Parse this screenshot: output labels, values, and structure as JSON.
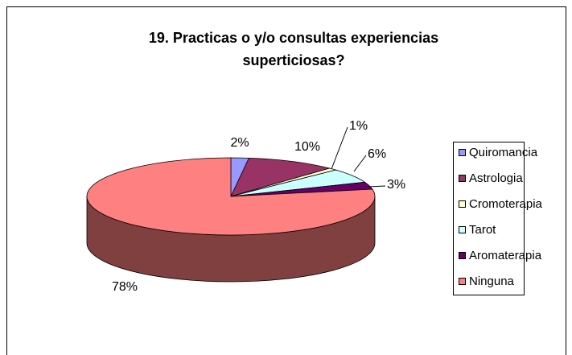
{
  "chart_data": {
    "type": "pie3d",
    "title": "19. Practicas o y/o consultas experiencias",
    "subtitle": "superticiosas?",
    "categories": [
      "Quiromancia",
      "Astrologia",
      "Cromoterapia",
      "Tarot",
      "Aromaterapia",
      "Ninguna"
    ],
    "values": [
      2,
      10,
      1,
      6,
      3,
      78
    ],
    "value_labels": [
      "2%",
      "10%",
      "1%",
      "6%",
      "3%",
      "78%"
    ],
    "colors": [
      "#9999ff",
      "#993366",
      "#ffffcc",
      "#ccffff",
      "#660066",
      "#ff8080"
    ],
    "legend": "right"
  }
}
